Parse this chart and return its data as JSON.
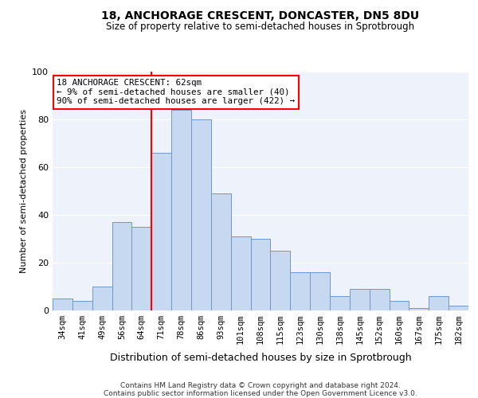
{
  "title1": "18, ANCHORAGE CRESCENT, DONCASTER, DN5 8DU",
  "title2": "Size of property relative to semi-detached houses in Sprotbrough",
  "xlabel": "Distribution of semi-detached houses by size in Sprotbrough",
  "ylabel": "Number of semi-detached properties",
  "footnote": "Contains HM Land Registry data © Crown copyright and database right 2024.\nContains public sector information licensed under the Open Government Licence v3.0.",
  "bin_labels": [
    "34sqm",
    "41sqm",
    "49sqm",
    "56sqm",
    "64sqm",
    "71sqm",
    "78sqm",
    "86sqm",
    "93sqm",
    "101sqm",
    "108sqm",
    "115sqm",
    "123sqm",
    "130sqm",
    "138sqm",
    "145sqm",
    "152sqm",
    "160sqm",
    "167sqm",
    "175sqm",
    "182sqm"
  ],
  "bar_values": [
    5,
    4,
    10,
    37,
    35,
    66,
    84,
    80,
    49,
    31,
    30,
    25,
    16,
    16,
    6,
    9,
    9,
    4,
    1,
    6,
    2
  ],
  "annotation_title": "18 ANCHORAGE CRESCENT: 62sqm",
  "annotation_line1": "← 9% of semi-detached houses are smaller (40)",
  "annotation_line2": "90% of semi-detached houses are larger (422) →",
  "vline_x": 4.5,
  "bar_color": "#c6d9f1",
  "bar_edge_color": "#7097c8",
  "vline_color": "red",
  "background_color": "#eef2fb",
  "ylim": [
    0,
    100
  ],
  "yticks": [
    0,
    20,
    40,
    60,
    80,
    100
  ]
}
